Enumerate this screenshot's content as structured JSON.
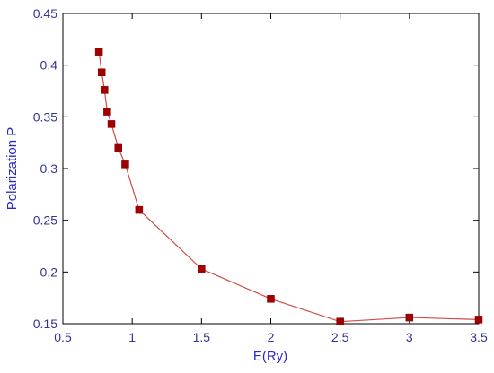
{
  "chart_data": {
    "type": "line",
    "title": "",
    "xlabel": "E(Ry)",
    "ylabel": "Polarization P",
    "xlim": [
      0.5,
      3.5
    ],
    "ylim": [
      0.15,
      0.45
    ],
    "x_ticks": [
      0.5,
      1,
      1.5,
      2,
      2.5,
      3,
      3.5
    ],
    "x_tick_labels": [
      "0.5",
      "1",
      "1.5",
      "2",
      "2.5",
      "3",
      "3.5"
    ],
    "y_ticks": [
      0.15,
      0.2,
      0.25,
      0.3,
      0.35,
      0.4,
      0.45
    ],
    "y_tick_labels": [
      "0.15",
      "0.2",
      "0.25",
      "0.3",
      "0.35",
      "0.4",
      "0.45"
    ],
    "grid": false,
    "legend": "none",
    "series": [
      {
        "x": [
          0.76,
          0.78,
          0.8,
          0.82,
          0.85,
          0.9,
          0.95,
          1.05,
          1.5,
          2.0,
          2.5,
          3.0,
          3.5
        ],
        "y": [
          0.413,
          0.393,
          0.376,
          0.355,
          0.343,
          0.32,
          0.304,
          0.26,
          0.203,
          0.174,
          0.152,
          0.156,
          0.154
        ],
        "color": "#b22222",
        "marker": "square"
      }
    ]
  },
  "colors": {
    "axis": "#000000",
    "tick_text": "#333399",
    "axis_label": "#2a2acc",
    "line": "#d24a4a",
    "marker": "#a00000"
  }
}
